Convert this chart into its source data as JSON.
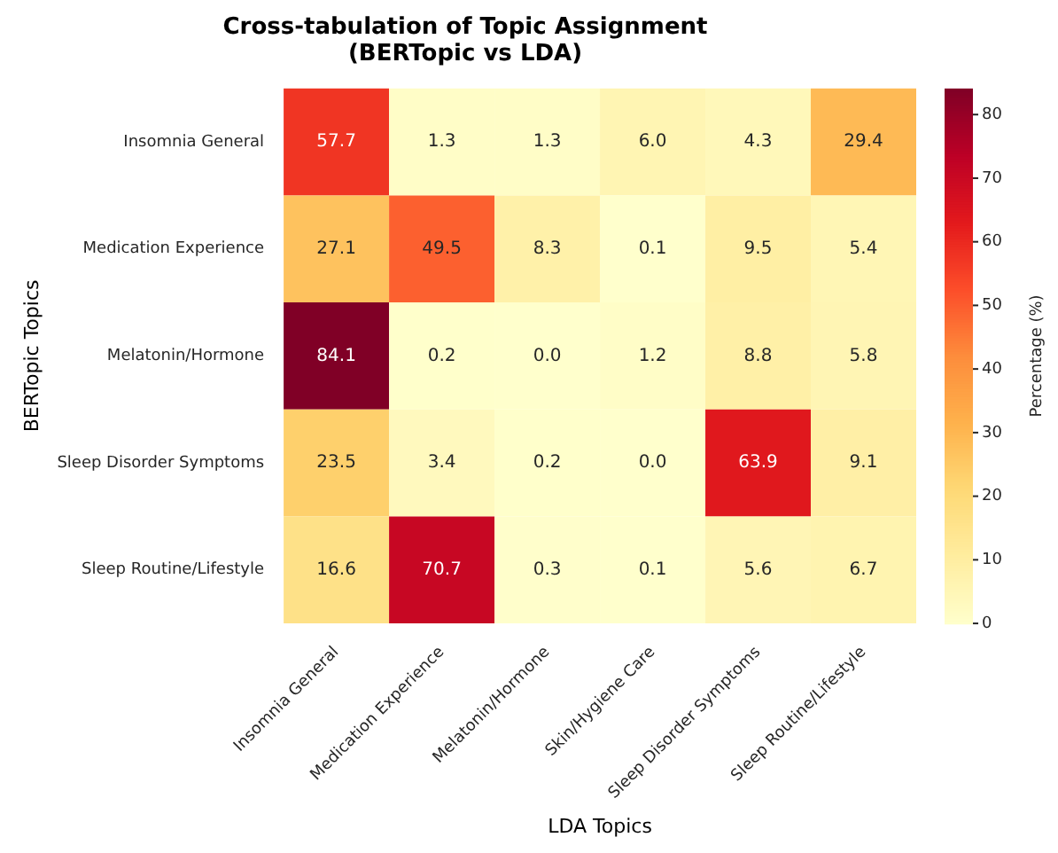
{
  "chart_data": {
    "type": "heatmap",
    "title": "Cross-tabulation of Topic Assignment\n(BERTopic vs LDA)",
    "xlabel": "LDA Topics",
    "ylabel": "BERTopic Topics",
    "clabel": "Percentage (%)",
    "categories": [
      "Insomnia General",
      "Medication Experience",
      "Melatonin/Hormone",
      "Skin/Hygiene Care",
      "Sleep Disorder Symptoms",
      "Sleep Routine/Lifestyle"
    ],
    "y_categories": [
      "Insomnia General",
      "Medication Experience",
      "Melatonin/Hormone",
      "Sleep Disorder Symptoms",
      "Sleep Routine/Lifestyle"
    ],
    "cells": [
      [
        57.7,
        1.3,
        1.3,
        6.0,
        4.3,
        29.4
      ],
      [
        27.1,
        49.5,
        8.3,
        0.1,
        9.5,
        5.4
      ],
      [
        84.1,
        0.2,
        0.0,
        1.2,
        8.8,
        5.8
      ],
      [
        23.5,
        3.4,
        0.2,
        0.0,
        63.9,
        9.1
      ],
      [
        16.6,
        70.7,
        0.3,
        0.1,
        5.6,
        6.7
      ]
    ],
    "cell_labels": [
      [
        "57.7",
        "1.3",
        "1.3",
        "6.0",
        "4.3",
        "29.4"
      ],
      [
        "27.1",
        "49.5",
        "8.3",
        "0.1",
        "9.5",
        "5.4"
      ],
      [
        "84.1",
        "0.2",
        "0.0",
        "1.2",
        "8.8",
        "5.8"
      ],
      [
        "23.5",
        "3.4",
        "0.2",
        "0.0",
        "63.9",
        "9.1"
      ],
      [
        "16.6",
        "70.7",
        "0.3",
        "0.1",
        "5.6",
        "6.7"
      ]
    ],
    "clim": [
      0,
      84.1
    ],
    "cticks": [
      0,
      10,
      20,
      30,
      40,
      50,
      60,
      70,
      80
    ]
  }
}
